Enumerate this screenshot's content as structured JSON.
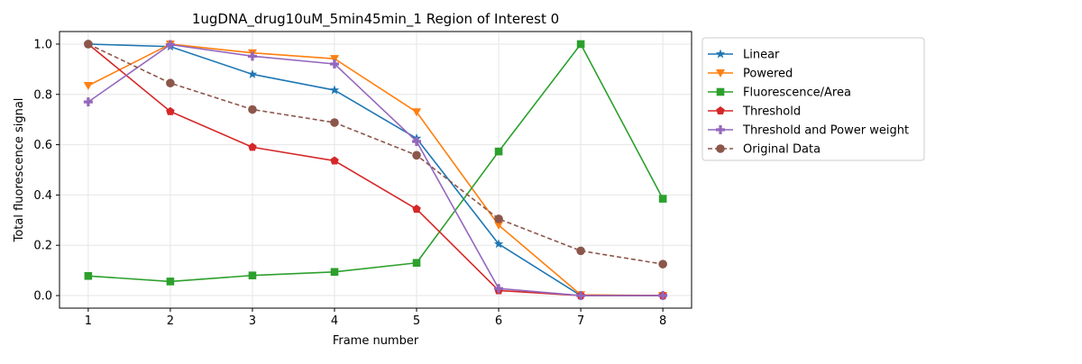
{
  "chart_data": {
    "type": "line",
    "title": "1ugDNA_drug10uM_5min45min_1 Region of Interest 0",
    "xlabel": "Frame number",
    "ylabel": "Total fluorescence signal",
    "x": [
      1,
      2,
      3,
      4,
      5,
      6,
      7,
      8
    ],
    "xticks": [
      1,
      2,
      3,
      4,
      5,
      6,
      7,
      8
    ],
    "yticks": [
      0.0,
      0.2,
      0.4,
      0.6,
      0.8,
      1.0
    ],
    "ytick_labels": [
      "0.0",
      "0.2",
      "0.4",
      "0.6",
      "0.8",
      "1.0"
    ],
    "xlim": [
      0.65,
      8.35
    ],
    "ylim": [
      -0.05,
      1.05
    ],
    "grid": true,
    "legend_position": "outside-right",
    "series": [
      {
        "name": "Linear",
        "color": "#1f77b4",
        "marker": "star",
        "dashed": false,
        "values": [
          1.0,
          0.99,
          0.88,
          0.817,
          0.625,
          0.205,
          0.0,
          0.0
        ]
      },
      {
        "name": "Powered",
        "color": "#ff7f0e",
        "marker": "triangle-down",
        "dashed": false,
        "values": [
          0.835,
          1.0,
          0.965,
          0.942,
          0.73,
          0.28,
          0.003,
          0.0
        ]
      },
      {
        "name": "Fluorescence/Area",
        "color": "#2ca02c",
        "marker": "square",
        "dashed": false,
        "values": [
          0.078,
          0.056,
          0.08,
          0.094,
          0.13,
          0.573,
          1.0,
          0.385
        ]
      },
      {
        "name": "Threshold",
        "color": "#d62728",
        "marker": "pentagon",
        "dashed": false,
        "values": [
          1.0,
          0.732,
          0.59,
          0.536,
          0.344,
          0.02,
          0.0,
          0.0
        ]
      },
      {
        "name": "Threshold and Power weight",
        "color": "#9467bd",
        "marker": "plus",
        "dashed": false,
        "values": [
          0.77,
          0.998,
          0.952,
          0.921,
          0.613,
          0.028,
          0.0,
          0.0
        ]
      },
      {
        "name": "Original Data",
        "color": "#8c564b",
        "marker": "circle",
        "dashed": true,
        "values": [
          1.0,
          0.845,
          0.74,
          0.688,
          0.558,
          0.305,
          0.178,
          0.125
        ]
      }
    ]
  }
}
